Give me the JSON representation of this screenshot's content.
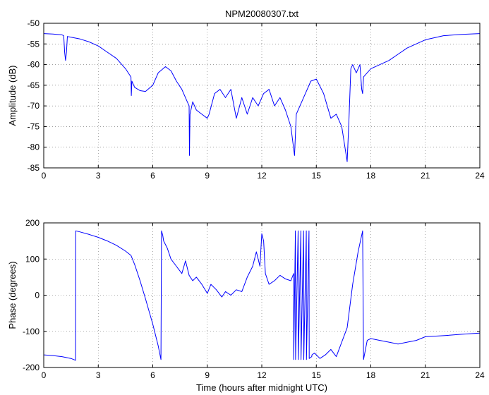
{
  "chart_data": [
    {
      "type": "line",
      "title": "NPM20080307.txt",
      "xlabel": "",
      "ylabel": "Amplitude (dB)",
      "xlim": [
        0,
        24
      ],
      "ylim": [
        -85,
        -50
      ],
      "xticks": [
        0,
        3,
        6,
        9,
        12,
        15,
        18,
        21,
        24
      ],
      "yticks": [
        -85,
        -80,
        -75,
        -70,
        -65,
        -60,
        -55,
        -50
      ],
      "grid": true,
      "color": "#0000ff",
      "series": [
        {
          "x": [
            0,
            0.5,
            1.0,
            1.1,
            1.15,
            1.2,
            1.25,
            1.3,
            1.4,
            2.0,
            2.5,
            3.0,
            3.5,
            4.0,
            4.5,
            4.8,
            4.82,
            4.85,
            5.0,
            5.3,
            5.6,
            6.0,
            6.3,
            6.7,
            7.0,
            7.3,
            7.6,
            7.9,
            8.0,
            8.02,
            8.05,
            8.2,
            8.4,
            8.7,
            9.0,
            9.1,
            9.4,
            9.7,
            10.0,
            10.3,
            10.6,
            10.9,
            11.2,
            11.5,
            11.8,
            12.1,
            12.4,
            12.7,
            13.0,
            13.3,
            13.6,
            13.8,
            13.9,
            14.1,
            14.4,
            14.7,
            15.0,
            15.4,
            15.8,
            16.1,
            16.4,
            16.7,
            16.8,
            16.9,
            17.0,
            17.2,
            17.4,
            17.5,
            17.55,
            17.6,
            18.0,
            18.5,
            19.0,
            19.5,
            20.0,
            21.0,
            22.0,
            23.0,
            24.0
          ],
          "y": [
            -52.5,
            -52.6,
            -52.8,
            -53,
            -57,
            -59,
            -57,
            -53.2,
            -53.3,
            -53.8,
            -54.5,
            -55.5,
            -57,
            -58.5,
            -61,
            -63,
            -67.5,
            -64,
            -65.5,
            -66.3,
            -66.5,
            -65,
            -62,
            -60.5,
            -61.5,
            -64,
            -66,
            -69,
            -70,
            -82,
            -72,
            -69,
            -71,
            -72,
            -73,
            -72,
            -67,
            -66,
            -68,
            -66,
            -73,
            -68,
            -72,
            -68,
            -70,
            -67,
            -66,
            -70,
            -68,
            -71,
            -75,
            -82,
            -72,
            -70,
            -67,
            -64,
            -63.5,
            -67,
            -73,
            -72,
            -75,
            -83.5,
            -73,
            -61,
            -60,
            -62,
            -60,
            -66,
            -67,
            -63,
            -61,
            -60,
            -59,
            -57.5,
            -56,
            -54,
            -53,
            -52.7,
            -52.5
          ]
        }
      ]
    },
    {
      "type": "line",
      "title": "",
      "xlabel": "Time (hours after midnight UTC)",
      "ylabel": "Phase (degrees)",
      "xlim": [
        0,
        24
      ],
      "ylim": [
        -200,
        200
      ],
      "xticks": [
        0,
        3,
        6,
        9,
        12,
        15,
        18,
        21,
        24
      ],
      "yticks": [
        -200,
        -100,
        0,
        100,
        200
      ],
      "grid": true,
      "color": "#0000ff",
      "series": [
        {
          "x": [
            0,
            0.5,
            1.0,
            1.5,
            1.75,
            1.76,
            2.0,
            2.5,
            3.0,
            3.5,
            4.0,
            4.5,
            4.8,
            5.0,
            5.3,
            5.6,
            6.0,
            6.3,
            6.45,
            6.48,
            6.55,
            6.6,
            6.8,
            7.0,
            7.3,
            7.6,
            7.8,
            8.0,
            8.2,
            8.4,
            8.7,
            9.0,
            9.2,
            9.5,
            9.8,
            10.0,
            10.3,
            10.6,
            10.9,
            11.2,
            11.5,
            11.7,
            11.9,
            12.0,
            12.1,
            12.2,
            12.4,
            12.7,
            13.0,
            13.3,
            13.6,
            13.75,
            13.76,
            13.85,
            13.86,
            14.0,
            14.01,
            14.15,
            14.16,
            14.3,
            14.31,
            14.45,
            14.46,
            14.6,
            14.61,
            14.75,
            14.76,
            14.9,
            15.2,
            15.5,
            15.8,
            16.1,
            16.4,
            16.7,
            17.0,
            17.3,
            17.55,
            17.6,
            17.61,
            17.8,
            18.0,
            18.5,
            19.0,
            19.5,
            20.0,
            20.5,
            21.0,
            22.0,
            23.0,
            24.0
          ],
          "y": [
            -165,
            -167,
            -170,
            -175,
            -180,
            178,
            175,
            168,
            160,
            150,
            138,
            122,
            110,
            85,
            40,
            -10,
            -80,
            -140,
            -178,
            178,
            165,
            150,
            130,
            100,
            80,
            60,
            95,
            55,
            40,
            50,
            30,
            5,
            30,
            15,
            -5,
            10,
            0,
            15,
            10,
            50,
            80,
            120,
            80,
            170,
            150,
            60,
            30,
            40,
            55,
            45,
            40,
            60,
            -178,
            178,
            -178,
            178,
            -178,
            178,
            -178,
            178,
            -178,
            178,
            -178,
            178,
            -175,
            -170,
            -165,
            -160,
            -175,
            -165,
            -150,
            -170,
            -130,
            -90,
            30,
            120,
            178,
            -178,
            -175,
            -125,
            -120,
            -125,
            -130,
            -135,
            -130,
            -125,
            -115,
            -112,
            -108,
            -105
          ]
        }
      ]
    }
  ]
}
